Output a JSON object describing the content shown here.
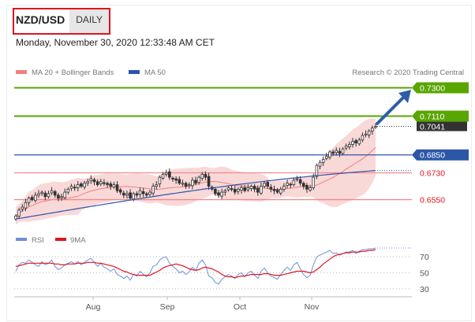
{
  "header": {
    "symbol": "NZD/USD",
    "timeframe": "DAILY",
    "date": "Monday, November 30, 2020 12:33:48 AM CET"
  },
  "legend": {
    "ma20": "MA 20 + Bollinger Bands",
    "ma50": "MA 50",
    "credit": "Research © 2020 Trading Central",
    "rsi": "RSI",
    "ma9": "9MA"
  },
  "colors": {
    "resistance": "#58a600",
    "support": "#e0141e",
    "ma50": "#2c56a8",
    "bollinger": "#f7c8c8",
    "price_tag": "#333333",
    "arrow": "#2d5fa6",
    "rsi": "#6f8fd9",
    "ma9": "#e0141e"
  },
  "chart_data": [
    {
      "type": "candlestick",
      "title": "NZD/USD",
      "levels": [
        {
          "value": 0.73,
          "label": "0.7300",
          "kind": "resistance"
        },
        {
          "value": 0.711,
          "label": "0.7110",
          "kind": "resistance"
        },
        {
          "value": 0.7041,
          "label": "0.7041",
          "kind": "last-price"
        },
        {
          "value": 0.685,
          "label": "0.6850",
          "kind": "pivot"
        },
        {
          "value": 0.673,
          "label": "0.6730",
          "kind": "support"
        },
        {
          "value": 0.655,
          "label": "0.6550",
          "kind": "support"
        }
      ],
      "x_ticks": [
        "Aug",
        "Sep",
        "Oct",
        "Nov"
      ],
      "ylim": [
        0.64,
        0.735
      ],
      "close": [
        0.644,
        0.648,
        0.65,
        0.653,
        0.656,
        0.655,
        0.658,
        0.659,
        0.66,
        0.657,
        0.659,
        0.661,
        0.658,
        0.656,
        0.657,
        0.66,
        0.662,
        0.664,
        0.663,
        0.665,
        0.664,
        0.666,
        0.667,
        0.669,
        0.667,
        0.665,
        0.667,
        0.666,
        0.665,
        0.664,
        0.665,
        0.661,
        0.66,
        0.658,
        0.659,
        0.656,
        0.659,
        0.658,
        0.661,
        0.659,
        0.658,
        0.66,
        0.664,
        0.665,
        0.67,
        0.672,
        0.673,
        0.67,
        0.669,
        0.668,
        0.666,
        0.666,
        0.664,
        0.665,
        0.668,
        0.666,
        0.67,
        0.672,
        0.67,
        0.664,
        0.662,
        0.659,
        0.658,
        0.66,
        0.661,
        0.663,
        0.662,
        0.66,
        0.662,
        0.663,
        0.661,
        0.663,
        0.664,
        0.662,
        0.66,
        0.664,
        0.666,
        0.664,
        0.662,
        0.661,
        0.66,
        0.662,
        0.664,
        0.666,
        0.665,
        0.668,
        0.669,
        0.666,
        0.664,
        0.662,
        0.663,
        0.67,
        0.678,
        0.68,
        0.682,
        0.684,
        0.687,
        0.686,
        0.688,
        0.686,
        0.689,
        0.691,
        0.692,
        0.694,
        0.693,
        0.695,
        0.698,
        0.699,
        0.701,
        0.703,
        0.7041
      ],
      "ma50_start": 0.642,
      "ma50_end": 0.6745
    },
    {
      "type": "line",
      "series": [
        {
          "name": "RSI"
        },
        {
          "name": "9MA"
        }
      ],
      "y_ticks": [
        30,
        50,
        70
      ],
      "ylim": [
        25,
        80
      ],
      "rsi": [
        52,
        60,
        63,
        62,
        66,
        63,
        60,
        58,
        64,
        60,
        62,
        66,
        58,
        54,
        56,
        60,
        62,
        64,
        61,
        64,
        60,
        63,
        66,
        68,
        63,
        58,
        62,
        57,
        55,
        52,
        55,
        48,
        46,
        43,
        46,
        41,
        48,
        46,
        52,
        48,
        45,
        50,
        58,
        60,
        66,
        69,
        70,
        62,
        58,
        55,
        50,
        52,
        48,
        51,
        57,
        53,
        62,
        66,
        60,
        46,
        44,
        38,
        36,
        42,
        45,
        48,
        46,
        43,
        48,
        50,
        45,
        50,
        52,
        47,
        43,
        52,
        56,
        50,
        46,
        44,
        42,
        48,
        53,
        57,
        53,
        60,
        63,
        55,
        48,
        44,
        47,
        60,
        70,
        72,
        74,
        76,
        78,
        74,
        75,
        72,
        74,
        76,
        76,
        78,
        74,
        77,
        79,
        79,
        80,
        80,
        81
      ],
      "ma9": [
        58,
        59,
        60,
        61,
        62,
        62,
        62,
        62,
        62,
        62,
        62,
        62,
        61,
        61,
        60,
        60,
        61,
        61,
        61,
        62,
        62,
        62,
        63,
        63,
        63,
        62,
        62,
        61,
        60,
        59,
        58,
        56,
        54,
        52,
        51,
        49,
        48,
        47,
        47,
        47,
        47,
        47,
        49,
        51,
        53,
        56,
        58,
        59,
        60,
        61,
        60,
        59,
        57,
        55,
        54,
        53,
        54,
        56,
        57,
        56,
        55,
        53,
        51,
        48,
        46,
        45,
        45,
        44,
        45,
        46,
        46,
        47,
        48,
        48,
        48,
        48,
        49,
        49,
        48,
        47,
        47,
        47,
        48,
        49,
        50,
        51,
        52,
        52,
        52,
        51,
        50,
        51,
        54,
        57,
        61,
        64,
        67,
        70,
        72,
        73,
        74,
        75,
        75,
        76,
        76,
        76,
        77,
        77,
        78,
        78,
        79
      ]
    }
  ]
}
